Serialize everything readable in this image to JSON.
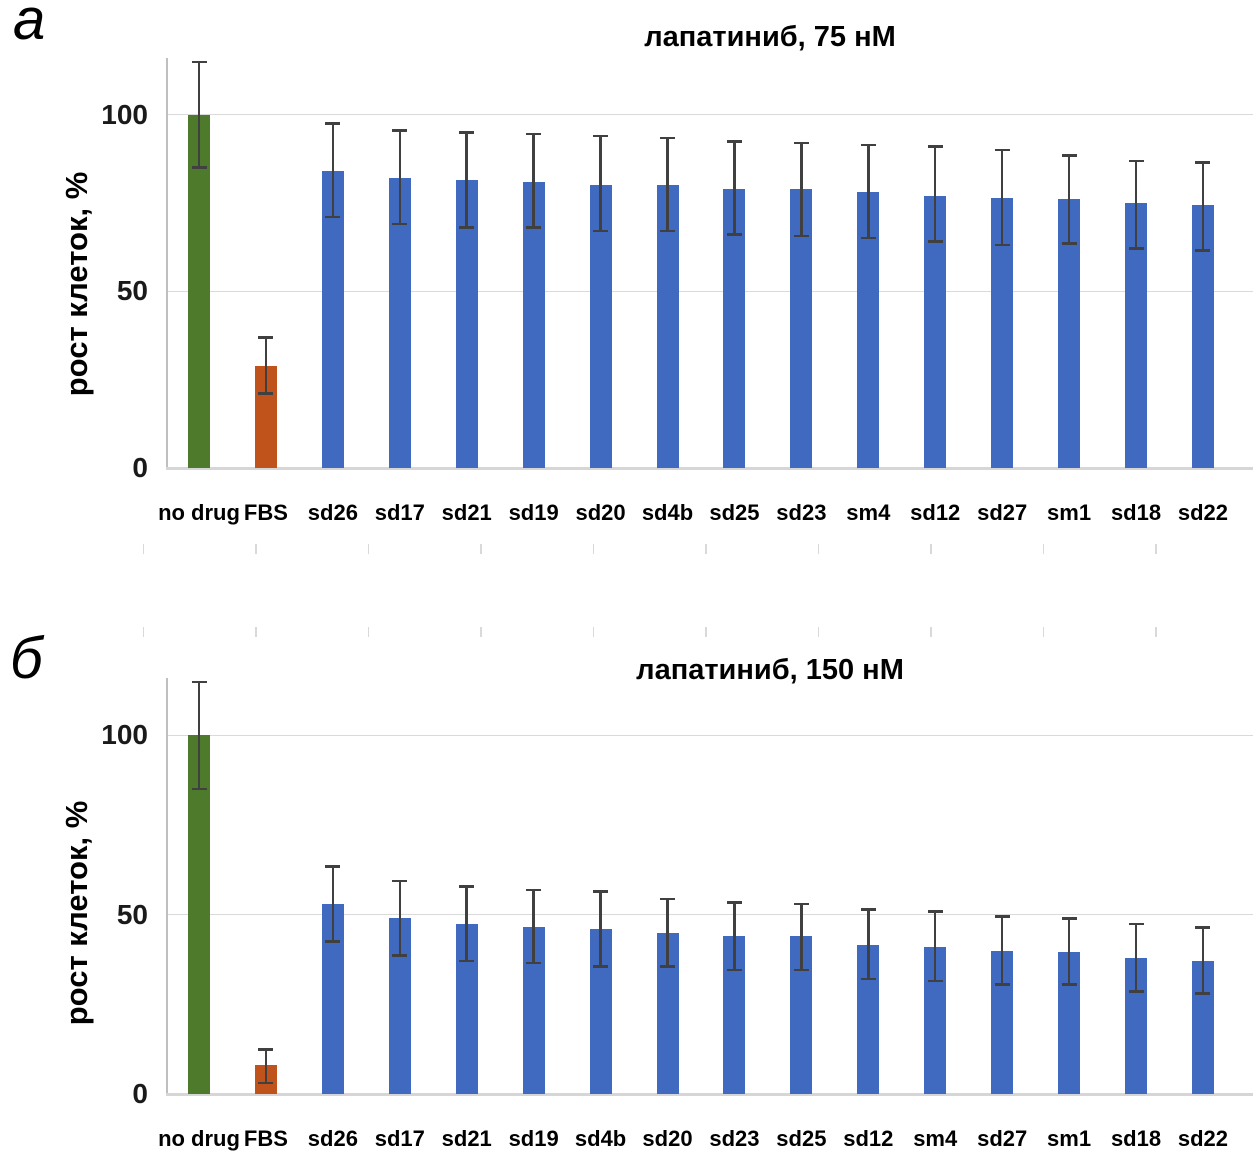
{
  "figure": {
    "panels": [
      {
        "label": "a"
      },
      {
        "label": "б"
      }
    ]
  },
  "chart_data": [
    {
      "type": "bar",
      "panel": "a",
      "title": "лапатиниб, 75 нМ",
      "xlabel": "",
      "ylabel": "рост клеток, %",
      "ylim": [
        0,
        116
      ],
      "yticks": [
        0,
        50,
        100
      ],
      "grid": "horizontal-light",
      "legend": "none",
      "error_bars": "plus-minus with caps",
      "error_bar_color": "#404040",
      "bar_colors": {
        "no drug": "#4D7A2B",
        "FBS": "#C0521C",
        "default": "#4069C0"
      },
      "categories": [
        "no drug",
        "FBS",
        "sd26",
        "sd17",
        "sd21",
        "sd19",
        "sd20",
        "sd4b",
        "sd25",
        "sd23",
        "sm4",
        "sd12",
        "sd27",
        "sm1",
        "sd18",
        "sd22"
      ],
      "values": [
        100,
        29,
        84,
        82,
        81.5,
        81,
        80,
        80,
        79,
        79,
        78,
        77,
        76.5,
        76,
        75,
        74.5
      ],
      "error_low": [
        85,
        21,
        71,
        69,
        68,
        68,
        67,
        67,
        66,
        65.5,
        65,
        64,
        63,
        63.5,
        62,
        61.5
      ],
      "error_high": [
        115,
        37,
        97.5,
        95.5,
        95,
        94.5,
        94,
        93.5,
        92.5,
        92,
        91.5,
        91,
        90,
        88.5,
        87,
        86.5
      ]
    },
    {
      "type": "bar",
      "panel": "б",
      "title": "лапатиниб, 150 нМ",
      "xlabel": "",
      "ylabel": "рост клеток, %",
      "ylim": [
        0,
        116
      ],
      "yticks": [
        0,
        50,
        100
      ],
      "grid": "horizontal-light",
      "legend": "none",
      "error_bars": "plus-minus with caps",
      "error_bar_color": "#404040",
      "bar_colors": {
        "no drug": "#4D7A2B",
        "FBS": "#C0521C",
        "default": "#4069C0"
      },
      "categories": [
        "no drug",
        "FBS",
        "sd26",
        "sd17",
        "sd21",
        "sd19",
        "sd4b",
        "sd20",
        "sd23",
        "sd25",
        "sd12",
        "sm4",
        "sd27",
        "sm1",
        "sd18",
        "sd22"
      ],
      "values": [
        100,
        8,
        53,
        49,
        47.5,
        46.5,
        46,
        45,
        44,
        44,
        41.5,
        41,
        40,
        39.5,
        38,
        37
      ],
      "error_low": [
        85,
        3,
        42.5,
        38.5,
        37,
        36.5,
        35.5,
        35.5,
        34.5,
        34.5,
        32,
        31.5,
        30.5,
        30.5,
        28.5,
        28
      ],
      "error_high": [
        115,
        12.5,
        63.5,
        59.5,
        58,
        57,
        56.5,
        54.5,
        53.5,
        53,
        51.5,
        51,
        49.5,
        49,
        47.5,
        46.5
      ]
    }
  ]
}
